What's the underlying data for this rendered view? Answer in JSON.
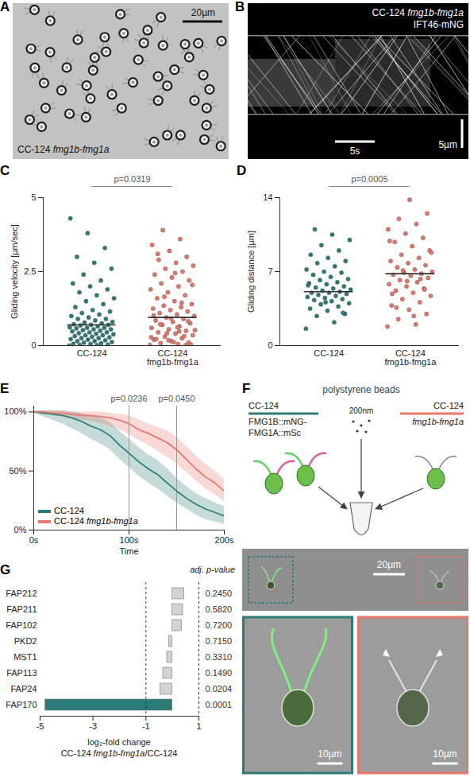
{
  "chart_data": [
    {
      "panel": "C",
      "type": "scatter",
      "ylabel": "Gliding velocity [µm/sec]",
      "categories": [
        "CC-124",
        "CC-124 fmg1b-fmg1a"
      ],
      "colors": [
        "#2b7c78",
        "#e8766a"
      ],
      "medians": [
        0.7,
        0.95
      ],
      "values": [
        [
          0.0,
          0.01,
          0.02,
          0.03,
          0.05,
          0.06,
          0.08,
          0.1,
          0.12,
          0.15,
          0.15,
          0.18,
          0.2,
          0.22,
          0.25,
          0.25,
          0.28,
          0.3,
          0.32,
          0.35,
          0.35,
          0.38,
          0.4,
          0.42,
          0.45,
          0.45,
          0.48,
          0.5,
          0.52,
          0.55,
          0.55,
          0.58,
          0.6,
          0.6,
          0.62,
          0.65,
          0.68,
          0.7,
          0.7,
          0.72,
          0.75,
          0.78,
          0.8,
          0.85,
          0.9,
          0.9,
          0.95,
          1.0,
          1.05,
          1.1,
          1.15,
          1.2,
          1.3,
          1.4,
          1.5,
          1.6,
          1.7,
          1.8,
          1.9,
          2.0,
          2.1,
          2.2,
          2.4,
          2.6,
          2.8,
          3.0,
          3.3,
          3.8,
          4.3
        ],
        [
          0.02,
          0.05,
          0.08,
          0.1,
          0.15,
          0.2,
          0.25,
          0.3,
          0.35,
          0.4,
          0.45,
          0.5,
          0.55,
          0.6,
          0.65,
          0.7,
          0.75,
          0.8,
          0.85,
          0.9,
          0.95,
          1.0,
          1.05,
          1.1,
          1.15,
          1.2,
          1.25,
          1.3,
          1.35,
          1.4,
          1.5,
          1.6,
          1.7,
          1.8,
          1.9,
          2.0,
          2.1,
          2.2,
          2.3,
          2.4,
          2.5,
          2.6,
          2.7,
          2.8,
          2.9,
          3.0,
          3.2,
          3.4,
          3.6,
          3.9,
          0.03,
          0.12,
          0.22,
          0.32,
          0.42,
          0.52,
          0.62,
          0.72,
          0.82,
          0.92,
          1.02,
          1.45,
          1.65,
          2.05,
          2.45,
          3.1,
          0.01,
          0.18,
          0.28,
          0.48
        ]
      ],
      "ylim": [
        0,
        5
      ],
      "yticks": [
        0,
        2.5,
        5
      ],
      "annotation": "p=0.0319"
    },
    {
      "panel": "D",
      "type": "scatter",
      "ylabel": "Gliding distance [µm]",
      "categories": [
        "CC-124",
        "CC-124 fmg1b-fmg1a"
      ],
      "colors": [
        "#2b7c78",
        "#e8766a"
      ],
      "medians": [
        5.1,
        6.8
      ],
      "values": [
        [
          1.6,
          2.2,
          2.8,
          3.0,
          3.3,
          3.5,
          3.7,
          3.9,
          4.0,
          4.2,
          4.3,
          4.4,
          4.5,
          4.6,
          4.7,
          4.8,
          4.9,
          5.0,
          5.0,
          5.1,
          5.2,
          5.3,
          5.4,
          5.5,
          5.6,
          5.8,
          5.9,
          6.0,
          6.2,
          6.3,
          6.5,
          6.7,
          6.9,
          7.0,
          7.2,
          7.5,
          7.8,
          8.0,
          8.3,
          8.6,
          9.0,
          9.5,
          10.0,
          10.5,
          11.0,
          3.1,
          4.1,
          5.7
        ],
        [
          1.8,
          2.0,
          2.5,
          3.0,
          3.4,
          3.8,
          4.1,
          4.4,
          4.7,
          5.0,
          5.2,
          5.4,
          5.6,
          5.8,
          6.0,
          6.2,
          6.4,
          6.6,
          6.7,
          6.8,
          6.9,
          7.0,
          7.2,
          7.4,
          7.6,
          7.8,
          8.0,
          8.3,
          8.6,
          9.0,
          9.4,
          9.8,
          10.2,
          10.6,
          11.0,
          11.5,
          12.0,
          12.5,
          13.8,
          4.9,
          6.3,
          7.1,
          8.8,
          2.8,
          3.6,
          5.3,
          6.1,
          9.9
        ]
      ],
      "ylim": [
        0,
        14
      ],
      "yticks": [
        0,
        7,
        14
      ],
      "annotation": "p=0.0005"
    },
    {
      "panel": "E",
      "type": "line",
      "xlabel": "Time",
      "x": [
        0,
        10,
        20,
        30,
        40,
        50,
        60,
        70,
        80,
        90,
        100,
        110,
        120,
        130,
        140,
        150,
        160,
        170,
        180,
        190,
        200
      ],
      "series": [
        {
          "name": "CC-124",
          "color": "#2b7c78",
          "values": [
            100,
            99,
            98,
            97,
            95,
            92,
            88,
            85,
            80,
            72,
            65,
            58,
            52,
            47,
            40,
            33,
            27,
            22,
            18,
            15,
            12
          ],
          "lower": [
            99,
            96,
            93,
            90,
            86,
            82,
            77,
            73,
            68,
            60,
            53,
            46,
            40,
            35,
            29,
            23,
            18,
            13,
            9,
            7,
            5
          ],
          "upper": [
            101,
            101,
            101,
            101,
            100,
            99,
            97,
            95,
            91,
            84,
            77,
            70,
            64,
            59,
            52,
            44,
            37,
            31,
            27,
            23,
            20
          ]
        },
        {
          "name": "CC-124 fmg1b-fmg1a",
          "color": "#e8766a",
          "values": [
            100,
            100,
            99,
            99,
            98,
            97,
            97,
            96,
            95,
            93,
            90,
            85,
            82,
            78,
            74,
            68,
            60,
            52,
            45,
            40,
            33
          ],
          "lower": [
            99,
            99,
            98,
            97,
            95,
            93,
            92,
            90,
            88,
            85,
            81,
            76,
            72,
            67,
            62,
            56,
            49,
            42,
            35,
            30,
            24
          ],
          "upper": [
            101,
            101,
            101,
            101,
            100,
            100,
            100,
            100,
            99,
            98,
            97,
            93,
            90,
            87,
            84,
            79,
            71,
            63,
            56,
            50,
            43
          ]
        }
      ],
      "xlim": [
        0,
        200
      ],
      "xticks": [
        {
          "value": 0,
          "label": "0s"
        },
        {
          "value": 100,
          "label": "100s"
        },
        {
          "value": 200,
          "label": "200s"
        }
      ],
      "ylim": [
        0,
        105
      ],
      "yticks": [
        {
          "value": 0,
          "label": "0%"
        },
        {
          "value": 50,
          "label": "50%"
        },
        {
          "value": 100,
          "label": "100%"
        }
      ],
      "legend": "lower left",
      "annotations": [
        {
          "x": 100,
          "text": "p=0.0236"
        },
        {
          "x": 150,
          "text": "p=0.0450"
        }
      ]
    },
    {
      "panel": "G",
      "type": "bar",
      "orientation": "horizontal",
      "categories": [
        "FAP212",
        "FAP211",
        "FAP102",
        "PKD2",
        "MST1",
        "FAP113",
        "FAP24",
        "FAP170"
      ],
      "values": [
        0.45,
        0.4,
        0.35,
        -0.12,
        -0.2,
        -0.35,
        -0.45,
        -4.8
      ],
      "colors": [
        "#d3d3d3",
        "#d3d3d3",
        "#d3d3d3",
        "#d3d3d3",
        "#d3d3d3",
        "#d3d3d3",
        "#d3d3d3",
        "#2b7c78"
      ],
      "xlim": [
        -5,
        1
      ],
      "xticks": [
        -5,
        -3,
        -1,
        1
      ],
      "reference_lines": [
        -1,
        1
      ],
      "xlabel": [
        "log₂-fold change",
        "CC-124 fmg1b-fmg1a/CC-124"
      ],
      "p_value_header": "adj. p-value",
      "p_values": [
        "0.2450",
        "0.5820",
        "0.7200",
        "0.7150",
        "0.3310",
        "0.1490",
        "0.0204",
        "0.0001"
      ]
    }
  ],
  "image_panels": [
    {
      "panel": "A",
      "label": "CC-124 fmg1b-fmg1a",
      "scale_bar": "20µm"
    },
    {
      "panel": "B",
      "labels": [
        "CC-124 fmg1b-fmg1a",
        "IFT46-mNG"
      ],
      "time_bar": "5s",
      "scale_bar": "5µm"
    },
    {
      "panel": "F",
      "title": "polystyrene beads",
      "bead_size": "200nm",
      "left_strain": "CC-124 FMG1B::mNG-FMG1A::mSc",
      "right_strain": "CC-124 fmg1b-fmg1a",
      "left_color": "#2b7c78",
      "right_color": "#e8766a",
      "overview_scale_bar": "20µm",
      "zoom_scale_bars": [
        "10µm",
        "10µm"
      ]
    }
  ]
}
